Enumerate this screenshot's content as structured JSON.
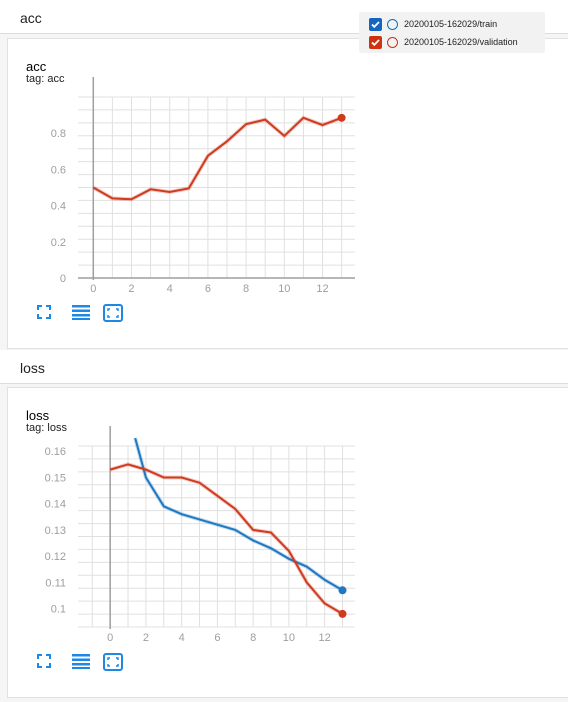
{
  "sections": [
    {
      "header": "acc",
      "card": {
        "title": "acc",
        "tag": "tag: acc",
        "tools": {
          "icons": [
            "expand-icon",
            "lines-icon",
            "fit-domain-icon"
          ]
        }
      }
    },
    {
      "header": "loss",
      "card": {
        "title": "loss",
        "tag": "tag: loss",
        "tools": {
          "icons": [
            "expand-icon",
            "lines-icon",
            "fit-domain-icon"
          ]
        }
      }
    }
  ],
  "legend": {
    "runs": [
      {
        "label": "20200105-162029/train",
        "checked": true,
        "color": "#0077bb"
      },
      {
        "label": "20200105-162029/validation",
        "checked": true,
        "color": "#cc3311"
      }
    ]
  },
  "colors": {
    "train": "#1f78c1",
    "validation": "#d03a1e",
    "grid": "#e0e0e0",
    "axis": "#9e9e9e"
  },
  "chart_data": [
    {
      "type": "line",
      "xlim": [
        -0.8,
        13.7
      ],
      "ylim": [
        0,
        1
      ],
      "xticks": [
        "0",
        "2",
        "4",
        "6",
        "8",
        "10",
        "12"
      ],
      "yticks": [
        "0",
        "0.2",
        "0.4",
        "0.6",
        "0.8"
      ],
      "grid": true,
      "series": [
        {
          "color_key": "validation",
          "x": [
            0,
            1,
            2,
            3,
            4,
            5,
            6,
            7,
            8,
            9,
            10,
            11,
            12,
            13
          ],
          "values": [
            0.5,
            0.44,
            0.435,
            0.49,
            0.475,
            0.495,
            0.675,
            0.755,
            0.85,
            0.875,
            0.785,
            0.885,
            0.845,
            0.885
          ]
        }
      ]
    },
    {
      "type": "line",
      "xlim": [
        -1.8,
        13.7
      ],
      "ylim": [
        0.093,
        0.162
      ],
      "xticks": [
        "0",
        "2",
        "4",
        "6",
        "8",
        "10",
        "12"
      ],
      "yticks": [
        "0.1",
        "0.11",
        "0.12",
        "0.13",
        "0.14",
        "0.15",
        "0.16"
      ],
      "grid": true,
      "series": [
        {
          "color_key": "train",
          "x": [
            1.4,
            2,
            3,
            4,
            5,
            6,
            7,
            8,
            9,
            10,
            11,
            12,
            13
          ],
          "values": [
            0.165,
            0.15,
            0.139,
            0.136,
            0.134,
            0.132,
            0.13,
            0.126,
            0.123,
            0.119,
            0.116,
            0.111,
            0.107
          ]
        },
        {
          "color_key": "validation",
          "x": [
            0,
            1,
            2,
            3,
            4,
            5,
            6,
            7,
            8,
            9,
            10,
            11,
            12,
            13
          ],
          "values": [
            0.153,
            0.155,
            0.153,
            0.15,
            0.15,
            0.148,
            0.143,
            0.138,
            0.13,
            0.129,
            0.122,
            0.11,
            0.102,
            0.098
          ]
        }
      ]
    }
  ]
}
